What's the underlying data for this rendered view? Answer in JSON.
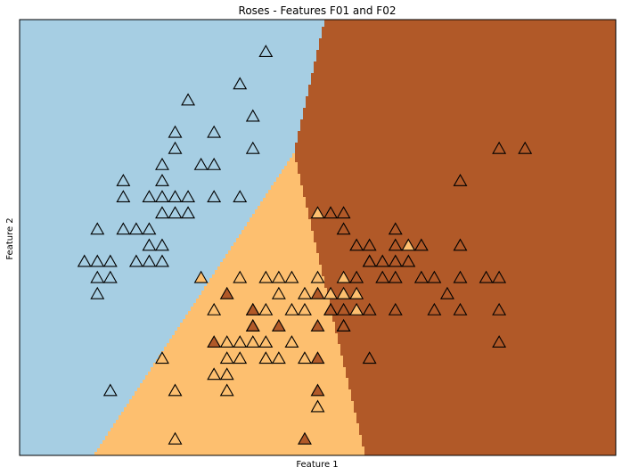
{
  "chart_data": {
    "type": "scatter",
    "title": "Roses - Features F01 and F02",
    "xlabel": "Feature 1",
    "ylabel": "Feature 2",
    "xlim": [
      4.0,
      8.6
    ],
    "ylim": [
      1.9,
      4.6
    ],
    "grid": false,
    "ticks": "hidden",
    "marker": "triangle",
    "regions": [
      {
        "class": 0,
        "color": "#a6cee3"
      },
      {
        "class": 1,
        "color": "#fdbf6f"
      },
      {
        "class": 2,
        "color": "#b15928"
      }
    ],
    "series": [
      {
        "class": 0,
        "color": "#a6cee3",
        "points": [
          [
            5.9,
            4.4
          ],
          [
            5.7,
            4.2
          ],
          [
            5.3,
            4.1
          ],
          [
            5.8,
            4.0
          ],
          [
            5.2,
            3.9
          ],
          [
            5.5,
            3.9
          ],
          [
            5.2,
            3.8
          ],
          [
            5.8,
            3.8
          ],
          [
            5.1,
            3.7
          ],
          [
            5.4,
            3.7
          ],
          [
            5.5,
            3.7
          ],
          [
            4.8,
            3.6
          ],
          [
            5.1,
            3.6
          ],
          [
            5.7,
            3.5
          ],
          [
            4.8,
            3.5
          ],
          [
            5.0,
            3.5
          ],
          [
            5.1,
            3.5
          ],
          [
            5.2,
            3.5
          ],
          [
            5.3,
            3.5
          ],
          [
            5.5,
            3.5
          ],
          [
            5.2,
            3.4
          ],
          [
            5.3,
            3.4
          ],
          [
            5.1,
            3.4
          ],
          [
            4.6,
            3.3
          ],
          [
            4.8,
            3.3
          ],
          [
            4.9,
            3.3
          ],
          [
            5.0,
            3.3
          ],
          [
            5.0,
            3.2
          ],
          [
            5.1,
            3.2
          ],
          [
            4.5,
            3.1
          ],
          [
            4.6,
            3.1
          ],
          [
            4.7,
            3.1
          ],
          [
            4.9,
            3.1
          ],
          [
            5.0,
            3.1
          ],
          [
            5.1,
            3.1
          ],
          [
            4.6,
            3.0
          ],
          [
            4.7,
            3.0
          ],
          [
            4.6,
            2.9
          ],
          [
            4.7,
            2.3
          ]
        ]
      },
      {
        "class": 1,
        "color": "#fdbf6f",
        "points": [
          [
            6.3,
            3.4
          ],
          [
            7.0,
            3.2
          ],
          [
            6.1,
            3.0
          ],
          [
            6.6,
            2.9
          ],
          [
            6.7,
            3.1
          ],
          [
            5.4,
            3.0
          ],
          [
            5.7,
            3.0
          ],
          [
            5.9,
            3.0
          ],
          [
            6.0,
            3.0
          ],
          [
            6.2,
            2.9
          ],
          [
            6.3,
            3.0
          ],
          [
            5.8,
            2.7
          ],
          [
            5.9,
            2.6
          ],
          [
            6.0,
            2.9
          ],
          [
            6.4,
            2.8
          ],
          [
            5.5,
            2.8
          ],
          [
            5.8,
            2.8
          ],
          [
            5.9,
            2.8
          ],
          [
            6.1,
            2.8
          ],
          [
            6.2,
            2.8
          ],
          [
            5.7,
            2.5
          ],
          [
            5.8,
            2.6
          ],
          [
            5.9,
            2.5
          ],
          [
            5.6,
            2.5
          ],
          [
            5.6,
            2.6
          ],
          [
            5.6,
            2.4
          ],
          [
            5.6,
            2.3
          ],
          [
            6.0,
            2.5
          ],
          [
            6.2,
            2.5
          ],
          [
            6.3,
            2.2
          ],
          [
            5.1,
            2.5
          ],
          [
            5.2,
            2.3
          ],
          [
            5.2,
            2.0
          ],
          [
            5.5,
            2.4
          ],
          [
            5.7,
            2.6
          ],
          [
            6.1,
            2.6
          ],
          [
            6.5,
            2.9
          ],
          [
            6.4,
            2.9
          ],
          [
            6.5,
            2.7
          ],
          [
            6.6,
            2.8
          ],
          [
            6.5,
            3.0
          ]
        ]
      },
      {
        "class": 2,
        "color": "#b15928",
        "points": [
          [
            7.7,
            3.8
          ],
          [
            7.9,
            3.8
          ],
          [
            7.4,
            3.6
          ],
          [
            6.4,
            3.4
          ],
          [
            6.5,
            3.4
          ],
          [
            6.9,
            3.3
          ],
          [
            6.5,
            3.3
          ],
          [
            6.6,
            3.2
          ],
          [
            6.7,
            3.2
          ],
          [
            6.9,
            3.2
          ],
          [
            7.1,
            3.2
          ],
          [
            7.4,
            3.2
          ],
          [
            6.7,
            3.1
          ],
          [
            6.8,
            3.1
          ],
          [
            7.0,
            3.1
          ],
          [
            7.7,
            3.0
          ],
          [
            6.3,
            2.9
          ],
          [
            7.2,
            3.0
          ],
          [
            7.6,
            3.0
          ],
          [
            7.1,
            3.0
          ],
          [
            6.9,
            3.0
          ],
          [
            6.8,
            3.0
          ],
          [
            6.6,
            3.0
          ],
          [
            7.2,
            2.8
          ],
          [
            7.3,
            2.9
          ],
          [
            7.4,
            3.0
          ],
          [
            6.9,
            3.1
          ],
          [
            7.4,
            2.8
          ],
          [
            7.7,
            2.8
          ],
          [
            6.7,
            2.8
          ],
          [
            6.9,
            2.8
          ],
          [
            6.3,
            2.7
          ],
          [
            6.5,
            2.7
          ],
          [
            6.7,
            2.5
          ],
          [
            7.7,
            2.6
          ],
          [
            6.3,
            2.5
          ],
          [
            5.8,
            2.7
          ],
          [
            5.6,
            2.9
          ],
          [
            5.8,
            2.8
          ],
          [
            6.0,
            2.7
          ],
          [
            6.3,
            2.3
          ],
          [
            6.4,
            2.8
          ],
          [
            6.5,
            2.8
          ],
          [
            5.5,
            2.6
          ],
          [
            6.2,
            2.0
          ]
        ]
      }
    ]
  }
}
